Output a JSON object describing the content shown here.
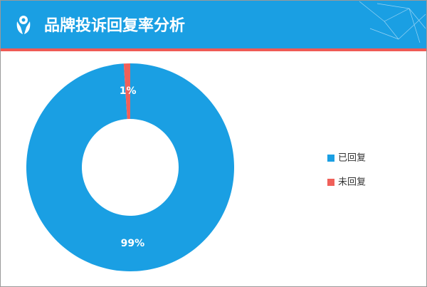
{
  "chart_data": {
    "type": "pie",
    "title": "品牌投诉回复率分析",
    "categories": [
      "已回复",
      "未回复"
    ],
    "values": [
      99,
      1
    ],
    "value_labels": [
      "99%",
      "1%"
    ],
    "colors": [
      "#1a9fe3",
      "#f0605a"
    ],
    "legend": "right"
  }
}
